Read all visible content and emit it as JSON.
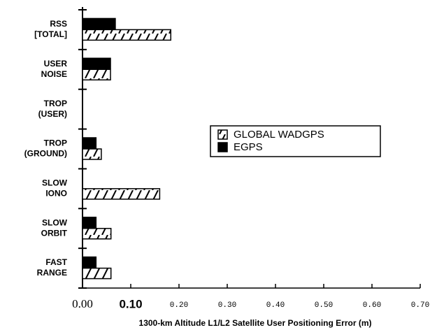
{
  "chart_data": {
    "type": "hbar",
    "xlabel": "1300-km Altitude L1/L2 Satellite User Positioning Error (m)",
    "categories": [
      [
        "RSS",
        "[TOTAL]"
      ],
      [
        "USER",
        "NOISE"
      ],
      [
        "TROP",
        "(USER)"
      ],
      [
        "TROP",
        "(GROUND)"
      ],
      [
        "SLOW",
        "IONO"
      ],
      [
        "SLOW",
        "ORBIT"
      ],
      [
        "FAST",
        "RANGE"
      ]
    ],
    "series": [
      {
        "name": "GLOBAL WADGPS",
        "color": "#000000",
        "pattern": "hatch",
        "values": [
          0.183,
          0.058,
          0,
          0.039,
          0.16,
          0.059,
          0.059
        ]
      },
      {
        "name": "EGPS",
        "color": "#000000",
        "pattern": "solid",
        "values": [
          0.068,
          0.058,
          0,
          0.028,
          0,
          0.028,
          0.028
        ]
      }
    ],
    "xlim": [
      0,
      0.7
    ],
    "xticks": [
      {
        "value": 0,
        "label": "0.00"
      },
      {
        "value": 0.1,
        "label": "0.10"
      },
      {
        "value": 0.2,
        "label": "0.20"
      },
      {
        "value": 0.3,
        "label": "0.30"
      },
      {
        "value": 0.4,
        "label": "0.40"
      },
      {
        "value": 0.5,
        "label": "0.50"
      },
      {
        "value": 0.6,
        "label": "0.60"
      },
      {
        "value": 0.7,
        "label": "0.70"
      }
    ],
    "legend": "right"
  }
}
